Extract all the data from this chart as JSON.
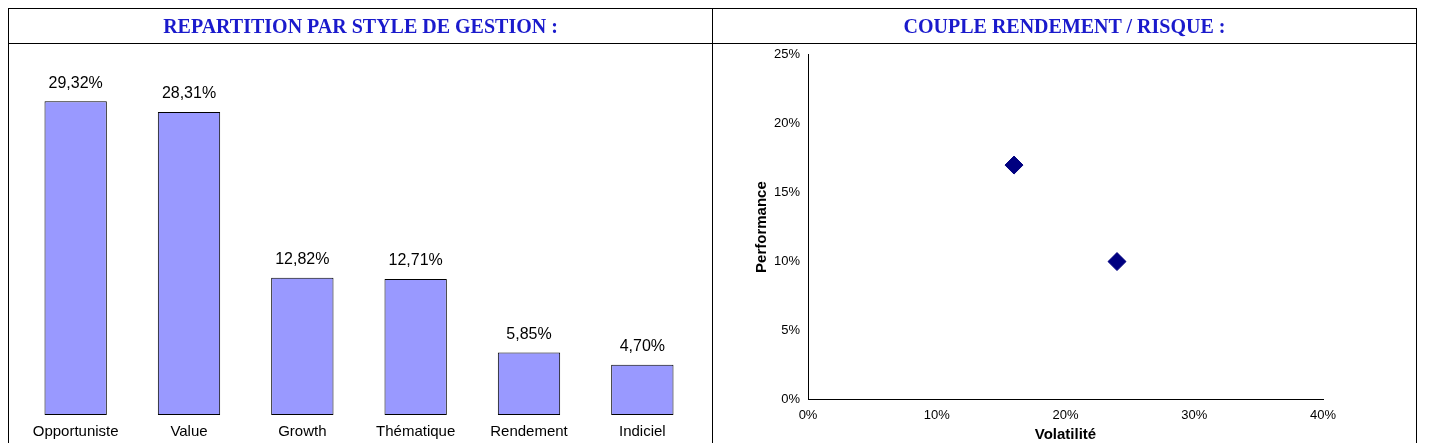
{
  "chart_data": [
    {
      "type": "bar",
      "title": "REPARTITION PAR STYLE DE GESTION :",
      "categories": [
        "Opportuniste",
        "Value",
        "Growth",
        "Thématique",
        "Rendement",
        "Indiciel"
      ],
      "values": [
        29.32,
        28.31,
        12.82,
        12.71,
        5.85,
        4.7
      ],
      "value_labels": [
        "29,32%",
        "28,31%",
        "12,82%",
        "12,71%",
        "5,85%",
        "4,70%"
      ],
      "color": "#9999ff",
      "tick_labels": "x",
      "grid": false,
      "legend": false
    },
    {
      "type": "scatter",
      "title": "COUPLE RENDEMENT / RISQUE :",
      "xlabel": "Volatilité",
      "ylabel": "Performance",
      "x": [
        16,
        24
      ],
      "values": [
        17,
        10
      ],
      "color": "#000080",
      "marker": "diamond",
      "xlim": [
        0,
        40
      ],
      "xticks": [
        {
          "value": 0,
          "label": "0%"
        },
        {
          "value": 10,
          "label": "10%"
        },
        {
          "value": 20,
          "label": "20%"
        },
        {
          "value": 30,
          "label": "30%"
        },
        {
          "value": 40,
          "label": "40%"
        }
      ],
      "ylim": [
        0,
        25
      ],
      "yticks": [
        {
          "value": 0,
          "label": "0%"
        },
        {
          "value": 5,
          "label": "5%"
        },
        {
          "value": 10,
          "label": "10%"
        },
        {
          "value": 15,
          "label": "15%"
        },
        {
          "value": 20,
          "label": "20%"
        },
        {
          "value": 25,
          "label": "25%"
        }
      ],
      "grid": false,
      "legend": false
    }
  ]
}
